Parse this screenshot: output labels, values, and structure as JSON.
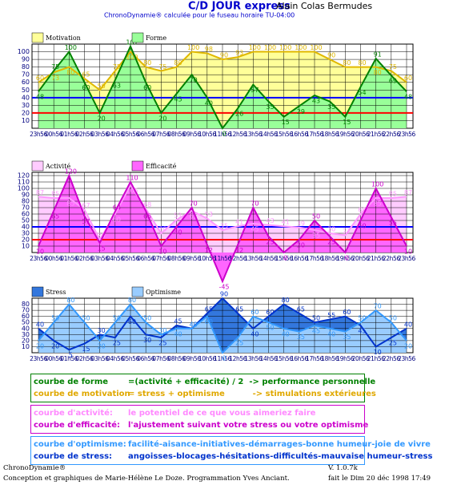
{
  "header": {
    "title": "C/D JOUR express",
    "author": "Alain Colas Bermudes",
    "subtitle": "ChronoDynamie® calculée pour le fuseau horaire TU-04:00"
  },
  "chart_data": [
    {
      "type": "area",
      "categories": [
        "23h56",
        "00h56",
        "01h56",
        "02h56",
        "03h56",
        "04h56",
        "05h56",
        "06h56",
        "07h56",
        "08h56",
        "09h56",
        "10h56",
        "11h56",
        "12h56",
        "13h56",
        "14h56",
        "15h56",
        "16h56",
        "17h56",
        "18h56",
        "19h56",
        "20h56",
        "21h56",
        "22h56",
        "23h56"
      ],
      "series": [
        {
          "name": "Motivation",
          "color": "#e0b800",
          "fill": "#ffff99",
          "values": [
            60,
            73,
            80,
            65,
            50,
            75,
            100,
            80,
            75,
            80,
            100,
            98,
            90,
            93,
            100,
            100,
            100,
            100,
            100,
            90,
            80,
            80,
            80,
            75,
            60
          ]
        },
        {
          "name": "Forme",
          "color": "#008000",
          "fill": "#99ff99",
          "values": [
            48,
            75,
            100,
            60,
            20,
            63,
            107,
            60,
            20,
            45,
            70,
            40,
            0,
            26,
            57,
            35,
            15,
            29,
            43,
            35,
            15,
            54,
            91,
            69,
            48
          ]
        }
      ],
      "ylim": [
        0,
        110
      ],
      "yticks": [
        10,
        20,
        30,
        40,
        50,
        60,
        70,
        80,
        90,
        100
      ],
      "grid": true,
      "reference_lines": [
        {
          "value": 20,
          "color": "#ff0000"
        },
        {
          "value": 40,
          "color": "#0000ff"
        }
      ]
    },
    {
      "type": "area",
      "categories": [
        "23h56",
        "00h56",
        "01h56",
        "02h56",
        "03h56",
        "04h56",
        "05h56",
        "06h56",
        "07h56",
        "08h56",
        "09h56",
        "10h56",
        "11h56",
        "12h56",
        "13h56",
        "14h56",
        "15h56",
        "16h56",
        "17h56",
        "18h56",
        "19h56",
        "20h56",
        "21h56",
        "22h56",
        "23h56"
      ],
      "series": [
        {
          "name": "Activité",
          "color": "#ff99ff",
          "fill": "#ffccff",
          "values": [
            87,
            85,
            85,
            67,
            20,
            60,
            105,
            68,
            30,
            51,
            65,
            53,
            35,
            41,
            45,
            43,
            41,
            39,
            35,
            30,
            27,
            60,
            85,
            85,
            87
          ]
        },
        {
          "name": "Efficacité",
          "color": "#cc00cc",
          "fill": "#ff66ff",
          "values": [
            10,
            65,
            120,
            57,
            15,
            64,
            110,
            65,
            10,
            40,
            70,
            12,
            -45,
            12,
            70,
            25,
            0,
            20,
            50,
            25,
            0,
            50,
            100,
            55,
            10
          ]
        }
      ],
      "ylim": [
        0,
        125
      ],
      "yticks": [
        10,
        20,
        30,
        40,
        50,
        60,
        70,
        80,
        90,
        100,
        110,
        120
      ],
      "grid": true,
      "reference_lines": [
        {
          "value": 20,
          "color": "#ff0000"
        },
        {
          "value": 40,
          "color": "#0000ff"
        }
      ]
    },
    {
      "type": "area",
      "categories": [
        "23h56",
        "00h56",
        "01h56",
        "02h56",
        "03h56",
        "04h56",
        "05h56",
        "06h56",
        "07h56",
        "08h56",
        "09h56",
        "10h56",
        "11h56",
        "12h56",
        "13h56",
        "14h56",
        "15h56",
        "16h56",
        "17h56",
        "18h56",
        "19h56",
        "20h56",
        "21h56",
        "22h56",
        "23h56"
      ],
      "series": [
        {
          "name": "Stress",
          "color": "#0033cc",
          "fill": "#3377dd",
          "values": [
            40,
            20,
            5,
            15,
            30,
            25,
            60,
            30,
            25,
            45,
            40,
            65,
            90,
            65,
            40,
            60,
            80,
            65,
            50,
            55,
            60,
            45,
            10,
            25,
            40
          ]
        },
        {
          "name": "Optimisme",
          "color": "#3399ff",
          "fill": "#99ccff",
          "values": [
            20,
            50,
            80,
            50,
            20,
            50,
            80,
            50,
            30,
            40,
            40,
            60,
            0,
            25,
            60,
            50,
            40,
            35,
            45,
            40,
            35,
            50,
            70,
            50,
            20
          ]
        }
      ],
      "ylim": [
        0,
        90
      ],
      "yticks": [
        10,
        20,
        30,
        40,
        50,
        60,
        70,
        80
      ],
      "grid": true,
      "reference_lines": []
    }
  ],
  "explanations": [
    {
      "border": "#008000",
      "lines": [
        {
          "label": "courbe de forme",
          "text": "=(activité + efficacité) / 2  -> performance personnelle",
          "color": "#008000"
        },
        {
          "label": "courbe de motivation",
          "text": "= stress + optimisme          -> stimulations extérieures",
          "color": "#e0a800"
        }
      ]
    },
    {
      "border": "#cc00cc",
      "lines": [
        {
          "label": "courbe d'activité:",
          "text": "le potentiel de ce que vous aimeriez faire",
          "color": "#ff88ff"
        },
        {
          "label": "courbe d'efficacité:",
          "text": "l'ajustement suivant votre stress ou votre optimisme",
          "color": "#cc00cc"
        }
      ]
    },
    {
      "border": "#3399ff",
      "lines": [
        {
          "label": "courbe d'optimisme:",
          "text": "facilité-aisance-initiatives-démarrages-bonne humeur-joie de vivre",
          "color": "#3399ff"
        },
        {
          "label": "courbe de stress:",
          "text": "angoisses-blocages-hésitations-difficultés-mauvaise humeur-stress",
          "color": "#0033cc"
        }
      ]
    }
  ],
  "footer": {
    "brand": "ChronoDynamie®",
    "credits": "Conception et graphiques de Marie-Hélène Le Doze. Programmation Yves Anciant.",
    "version": "V. 1.0.7k",
    "date": "fait le Dim 20 déc 1998 17:49"
  }
}
